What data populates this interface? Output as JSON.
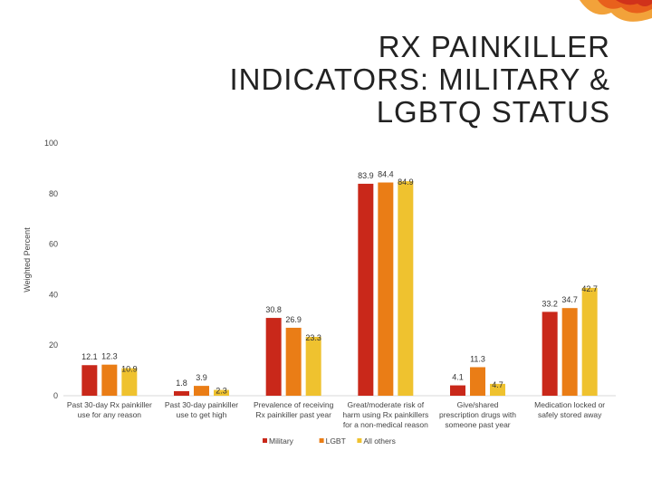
{
  "chart_data": {
    "type": "bar",
    "title": "RX PAINKILLER INDICATORS:   MILITARY & LGBTQ STATUS",
    "title_lines": [
      "RX PAINKILLER",
      "INDICATORS:   MILITARY &",
      "LGBTQ STATUS"
    ],
    "ylabel": "Weighted Percent",
    "xlabel": "",
    "ylim": [
      0,
      100
    ],
    "yticks": [
      0,
      20,
      40,
      60,
      80,
      100
    ],
    "grid": false,
    "legend_position": "bottom-center",
    "categories": [
      [
        "Past 30-day Rx painkiller",
        "use for any reason"
      ],
      [
        "Past 30-day painkiller",
        "use to get high"
      ],
      [
        "Prevalence of receiving",
        "Rx painkiller past year"
      ],
      [
        "Great/moderate risk of",
        "harm using Rx painkillers",
        "for a non-medical reason"
      ],
      [
        "Give/shared",
        "prescription drugs with",
        "someone past year"
      ],
      [
        "Medication locked or",
        "safely stored away"
      ]
    ],
    "series": [
      {
        "name": "Military",
        "color": "#c9281a",
        "values": [
          12.1,
          1.8,
          30.8,
          83.9,
          4.1,
          33.2
        ],
        "labels": [
          "12.1",
          "1.8",
          "30.8",
          "83.9",
          "4.1",
          "33.2"
        ]
      },
      {
        "name": "LGBT",
        "color": "#ea7d16",
        "values": [
          12.3,
          3.9,
          26.9,
          84.4,
          11.3,
          34.7
        ],
        "labels": [
          "12.3",
          "3.9",
          "26.9",
          "84.4",
          "11.3",
          "34.7"
        ]
      },
      {
        "name": "All others",
        "color": "#efc22f",
        "values": [
          10.9,
          2.3,
          23.3,
          84.9,
          4.7,
          42.7
        ],
        "labels": [
          "10.9",
          "2.3",
          "23.3",
          "84.9",
          "4.7",
          "42.7"
        ]
      }
    ]
  }
}
